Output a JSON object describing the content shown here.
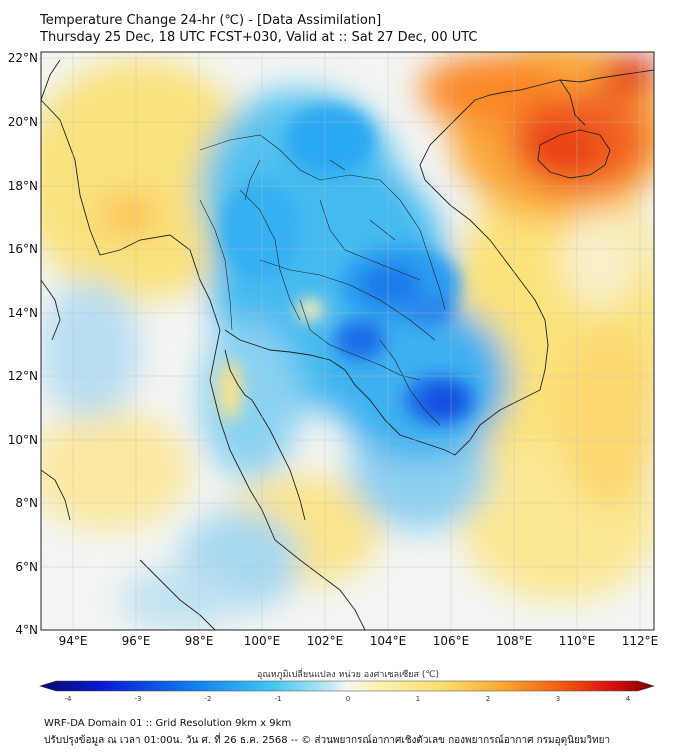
{
  "title": {
    "line1": "Temperature Change 24-hr (℃) - [Data Assimilation]",
    "line2": "Thursday 25 Dec, 18 UTC FCST+030, Valid at :: Sat 27 Dec, 00 UTC"
  },
  "axes": {
    "lat_labels": [
      "22°N",
      "20°N",
      "18°N",
      "16°N",
      "14°N",
      "12°N",
      "10°N",
      "8°N",
      "6°N",
      "4°N"
    ],
    "lon_labels": [
      "94°E",
      "96°E",
      "98°E",
      "100°E",
      "102°E",
      "104°E",
      "106°E",
      "108°E",
      "110°E",
      "112°E"
    ],
    "lat_range": [
      4,
      22
    ],
    "lon_range": [
      93,
      112.5
    ]
  },
  "colorbar": {
    "label": "อุณหภูมิเปลี่ยนแปลง หน่วย องศาเซลเซียส (℃)",
    "ticks": [
      "-4",
      "-3",
      "-2",
      "-1",
      "0",
      "1",
      "2",
      "3",
      "4"
    ],
    "range": [
      -4,
      4
    ]
  },
  "footer": {
    "line1": "WRF-DA Domain 01 :: Grid Resolution 9km x 9km",
    "line2": "ปรับปรุงข้อมูล ณ เวลา 01:00น. วัน ศ. ที่ 26 ธ.ค. 2568 -- © ส่วนพยากรณ์อากาศเชิงตัวเลข กองพยากรณ์อากาศ กรมอุตุนิยมวิทยา"
  },
  "colors": {
    "cold_deep": "#0044e0",
    "cold": "#27b4f0",
    "cool": "#a8ddf4",
    "neutral": "#f2f6f4",
    "warm": "#fbe88a",
    "hot": "#ff9a1a",
    "hottest": "#e81808"
  }
}
